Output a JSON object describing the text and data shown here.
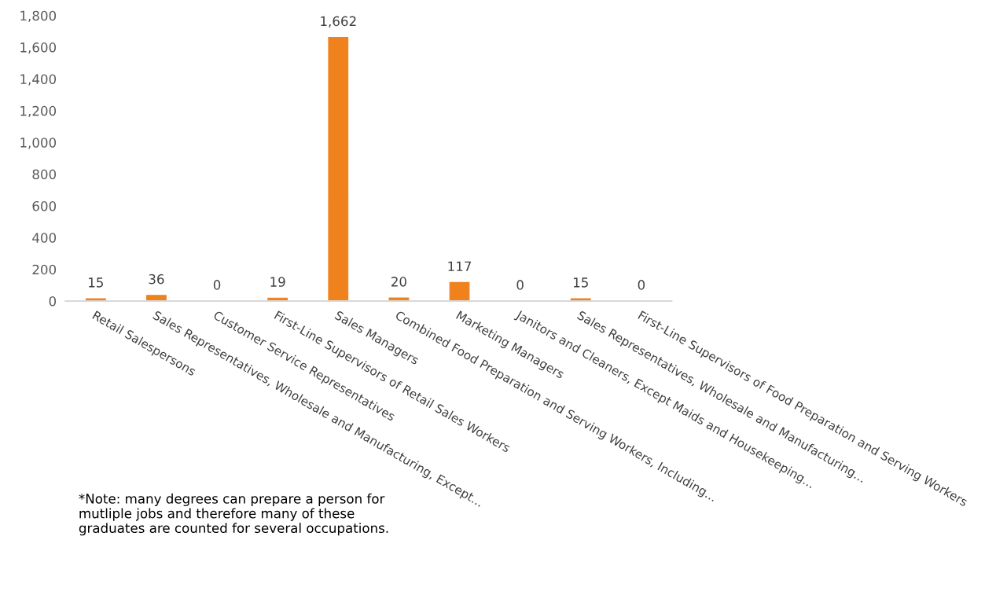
{
  "chart_data": {
    "type": "bar",
    "categories": [
      "Retail Salespersons",
      "Sales Representatives, Wholesale and Manufacturing, Except...",
      "Customer Service Representatives",
      "First-Line Supervisors of Retail Sales Workers",
      "Sales Managers",
      "Combined Food Preparation and Serving Workers, Including...",
      "Marketing Managers",
      "Janitors and Cleaners, Except Maids and Housekeeping...",
      "Sales Representatives, Wholesale and Manufacturing...",
      "First-Line Supervisors of Food Preparation and Serving Workers"
    ],
    "values": [
      15,
      36,
      0,
      19,
      1662,
      20,
      117,
      0,
      15,
      0
    ],
    "color": "#f0821e",
    "ylim": [
      0,
      1800
    ],
    "yticks": [
      {
        "value": 0,
        "label": "0"
      },
      {
        "value": 200,
        "label": "200"
      },
      {
        "value": 400,
        "label": "400"
      },
      {
        "value": 600,
        "label": "600"
      },
      {
        "value": 800,
        "label": "800"
      },
      {
        "value": 1000,
        "label": "1,000"
      },
      {
        "value": 1200,
        "label": "1,200"
      },
      {
        "value": 1400,
        "label": "1,400"
      },
      {
        "value": 1600,
        "label": "1,600"
      },
      {
        "value": 1800,
        "label": "1,800"
      }
    ],
    "value_labels": [
      "15",
      "36",
      "0",
      "19",
      "1,662",
      "20",
      "117",
      "0",
      "15",
      "0"
    ],
    "grid": false,
    "legend": false,
    "annotations": [
      "*Note: many degrees can prepare a person for mutliple jobs and therefore many of these graduates are counted for several occupations."
    ]
  }
}
